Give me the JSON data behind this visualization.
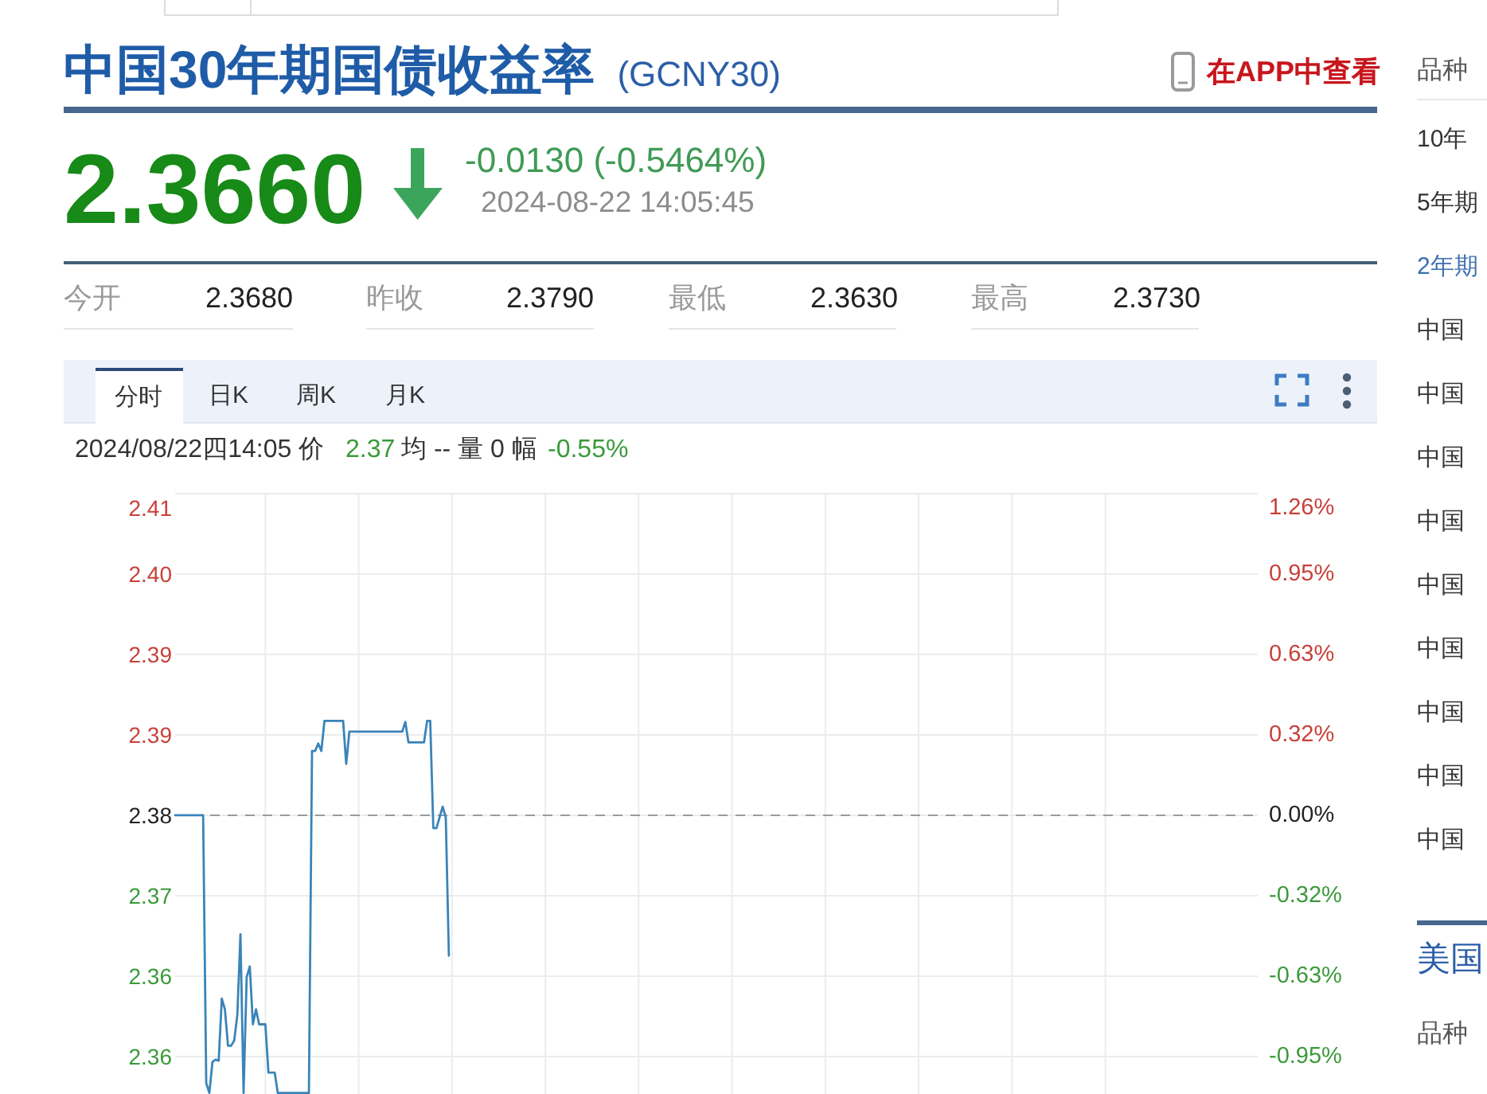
{
  "chart_data": {
    "type": "line",
    "title": "中国30年期国债收益率",
    "subtitle": "(GCNY30)",
    "annotations": [
      "在APP中查看",
      "2.3660",
      "-0.0130 (-0.5464%)",
      "2024-08-22 14:05:45",
      "今开",
      "2.3680",
      "昨收",
      "2.3790",
      "最低",
      "2.3630",
      "最高",
      "2.3730",
      "分时",
      "日K",
      "周K",
      "月K",
      "2024/08/22四14:05 价",
      "2.37",
      "均 -- 量 0 幅",
      "-0.55%",
      "品种",
      "10年",
      "5年期",
      "2年期",
      "中国",
      "中国",
      "中国",
      "中国",
      "中国",
      "中国",
      "中国",
      "中国",
      "中国",
      "美国",
      "品种"
    ],
    "categories": [
      null,
      null,
      null,
      null,
      null,
      null,
      null,
      null,
      null,
      null,
      null,
      null,
      null,
      null,
      null,
      null,
      null,
      null,
      null,
      null,
      null,
      null,
      null,
      null,
      null,
      null,
      null,
      null,
      null,
      null,
      null,
      null,
      null,
      null,
      null,
      null,
      null,
      null,
      null,
      null,
      null,
      null,
      null,
      null,
      null,
      null,
      null,
      null,
      null,
      null,
      null,
      null,
      null,
      null,
      null,
      null,
      null,
      null,
      null,
      null,
      null,
      null,
      null,
      null,
      null,
      null,
      null,
      null,
      null,
      null,
      null,
      null,
      null,
      null,
      null,
      null,
      null,
      null,
      null,
      null,
      null,
      null,
      null,
      null,
      null,
      null,
      null,
      null,
      null,
      null,
      null,
      null,
      null,
      null,
      null,
      null,
      null,
      null,
      null,
      null,
      null,
      null,
      null,
      null,
      null,
      null,
      null,
      null,
      null,
      null,
      null,
      null,
      null,
      null,
      null,
      null,
      null,
      null,
      null,
      null,
      null,
      null,
      null,
      null,
      null,
      null,
      null,
      null,
      null,
      null,
      null,
      null,
      null,
      null,
      null,
      null,
      null,
      null,
      null,
      null,
      null,
      null,
      null,
      null,
      null,
      null,
      null,
      null,
      null,
      null,
      null,
      null,
      null,
      null,
      null,
      null,
      null,
      null,
      null,
      null,
      null,
      null,
      null,
      null,
      null,
      null,
      null,
      null,
      null,
      null,
      null,
      null,
      null,
      null,
      null,
      null,
      null,
      null,
      null,
      null,
      null,
      null,
      null,
      null,
      null,
      null,
      null,
      null,
      null,
      null,
      null,
      null,
      null,
      null,
      null,
      null,
      null,
      null,
      null,
      null,
      null,
      null,
      null,
      null,
      null,
      null,
      null,
      null,
      null,
      null,
      null,
      null,
      null,
      null,
      null,
      null,
      null,
      null,
      null,
      null,
      null,
      null,
      null,
      null,
      null,
      null,
      null,
      null,
      null,
      null,
      null,
      null,
      null,
      null,
      null,
      null,
      null,
      null,
      null,
      null,
      null,
      null,
      null,
      null,
      null,
      null,
      null,
      null,
      null,
      null,
      null,
      null,
      null,
      null,
      null,
      null,
      null,
      null,
      null,
      null,
      null,
      null,
      null,
      null,
      null,
      null,
      null,
      null,
      null,
      null,
      null,
      null,
      null,
      null,
      null,
      null,
      null,
      null,
      null,
      null,
      null,
      null,
      null,
      null,
      null,
      null,
      null,
      null,
      null,
      null,
      null,
      null,
      null,
      null,
      null,
      null,
      null,
      null,
      null,
      null,
      null,
      null,
      null,
      null,
      null,
      null,
      null,
      null,
      null,
      null,
      null,
      null,
      null,
      null,
      null,
      null,
      null,
      null,
      null,
      null,
      null,
      null,
      null,
      null,
      null,
      null,
      null,
      null,
      null,
      null,
      null,
      null,
      null,
      null,
      null,
      null,
      null,
      null,
      null,
      null,
      null,
      null,
      null,
      null,
      null,
      null,
      null,
      null,
      null
    ],
    "series": [
      {
        "color": "#3a84b9",
        "values": [
          2.379,
          2.379,
          2.379,
          2.379,
          2.379,
          2.379,
          2.379,
          2.379,
          2.379,
          2.379,
          2.354,
          2.3531,
          2.356,
          2.3562,
          2.3561,
          2.3619,
          2.3609,
          2.3575,
          2.3575,
          2.358,
          2.3604,
          2.3679,
          2.3531,
          2.3639,
          2.3649,
          2.3595,
          2.3609,
          2.3595,
          2.3595,
          2.3595,
          2.355,
          2.355,
          2.355,
          2.3531,
          2.3531,
          2.3531,
          2.3531,
          2.3531,
          2.3531,
          2.3531,
          2.3531,
          2.3531,
          2.3531,
          2.3531,
          2.385,
          2.385,
          2.3857,
          2.385,
          2.3878,
          2.3878,
          2.3878,
          2.3878,
          2.3878,
          2.3878,
          2.3878,
          2.3838,
          2.3868,
          2.3868,
          2.3868,
          2.3868,
          2.3868,
          2.3868,
          2.3868,
          2.3868,
          2.3868,
          2.3868,
          2.3868,
          2.3868,
          2.3868,
          2.3868,
          2.3868,
          2.3868,
          2.3868,
          2.3868,
          2.3877,
          2.3858,
          2.3858,
          2.3858,
          2.3858,
          2.3858,
          2.3858,
          2.3878,
          2.3878,
          2.3778,
          2.3778,
          2.3788,
          2.3798,
          2.3788,
          2.3659,
          null,
          null,
          null,
          null,
          null,
          null,
          null,
          null,
          null,
          null,
          null,
          null,
          null,
          null,
          null,
          null,
          null,
          null,
          null,
          null,
          null,
          null,
          null,
          null,
          null,
          null,
          null,
          null,
          null,
          null,
          null,
          null,
          null,
          null,
          null,
          null,
          null,
          null,
          null,
          null,
          null,
          null,
          null,
          null,
          null,
          null,
          null,
          null,
          null,
          null,
          null,
          null,
          null,
          null,
          null,
          null,
          null,
          null,
          null,
          null,
          null,
          null,
          null,
          null,
          null,
          null,
          null,
          null,
          null,
          null,
          null,
          null,
          null,
          null,
          null,
          null,
          null,
          null,
          null,
          null,
          null,
          null,
          null,
          null,
          null,
          null,
          null,
          null,
          null,
          null,
          null,
          null,
          null,
          null,
          null,
          null,
          null,
          null,
          null,
          null,
          null,
          null,
          null,
          null,
          null,
          null,
          null,
          null,
          null,
          null,
          null,
          null,
          null,
          null,
          null,
          null,
          null,
          null,
          null,
          null,
          null,
          null,
          null,
          null,
          null,
          null,
          null,
          null,
          null,
          null,
          null,
          null,
          null,
          null,
          null,
          null,
          null,
          null,
          null,
          null,
          null,
          null,
          null,
          null,
          null,
          null,
          null,
          null,
          null,
          null,
          null,
          null,
          null,
          null,
          null,
          null,
          null,
          null,
          null,
          null,
          null,
          null,
          null,
          null,
          null,
          null,
          null,
          null,
          null,
          null,
          null,
          null,
          null,
          null,
          null,
          null,
          null,
          null,
          null,
          null,
          null,
          null,
          null,
          null,
          null,
          null,
          null,
          null,
          null,
          null,
          null,
          null,
          null,
          null,
          null,
          null,
          null,
          null,
          null,
          null,
          null,
          null,
          null,
          null,
          null,
          null,
          null,
          null,
          null,
          null,
          null,
          null,
          null,
          null,
          null,
          null,
          null,
          null,
          null,
          null,
          null,
          null,
          null,
          null,
          null,
          null,
          null,
          null,
          null,
          null,
          null,
          null,
          null,
          null,
          null,
          null,
          null,
          null,
          null,
          null,
          null,
          null,
          null,
          null,
          null,
          null,
          null,
          null,
          null,
          null,
          null,
          null,
          null,
          null,
          null,
          null,
          null,
          null,
          null,
          null
        ]
      }
    ],
    "ylim": [
      2.353,
      2.409
    ],
    "yticks": [
      {
        "value": 2.409,
        "label": "2.41"
      },
      {
        "value": 2.4015,
        "label": "2.40"
      },
      {
        "value": 2.394,
        "label": "2.39"
      },
      {
        "value": 2.3865,
        "label": "2.39"
      },
      {
        "value": 2.379,
        "label": "2.38"
      },
      {
        "value": 2.3715,
        "label": "2.37"
      },
      {
        "value": 2.364,
        "label": "2.36"
      },
      {
        "value": 2.3565,
        "label": "2.36"
      }
    ],
    "y2lim": [
      -1.093,
      1.261
    ],
    "y2ticks": [
      {
        "value": 1.261,
        "label": "1.26%"
      },
      {
        "value": 0.946,
        "label": "0.95%"
      },
      {
        "value": 0.631,
        "label": "0.63%"
      },
      {
        "value": 0.315,
        "label": "0.32%"
      },
      {
        "value": 0,
        "label": "0.00%"
      },
      {
        "value": -0.315,
        "label": "-0.32%"
      },
      {
        "value": -0.631,
        "label": "-0.63%"
      },
      {
        "value": -0.946,
        "label": "-0.95%"
      }
    ],
    "ref_lines": [
      {
        "axis": "y",
        "value": 2.379,
        "color": "#9a9a9a",
        "line_style": "dashed"
      }
    ],
    "grid": true
  }
}
